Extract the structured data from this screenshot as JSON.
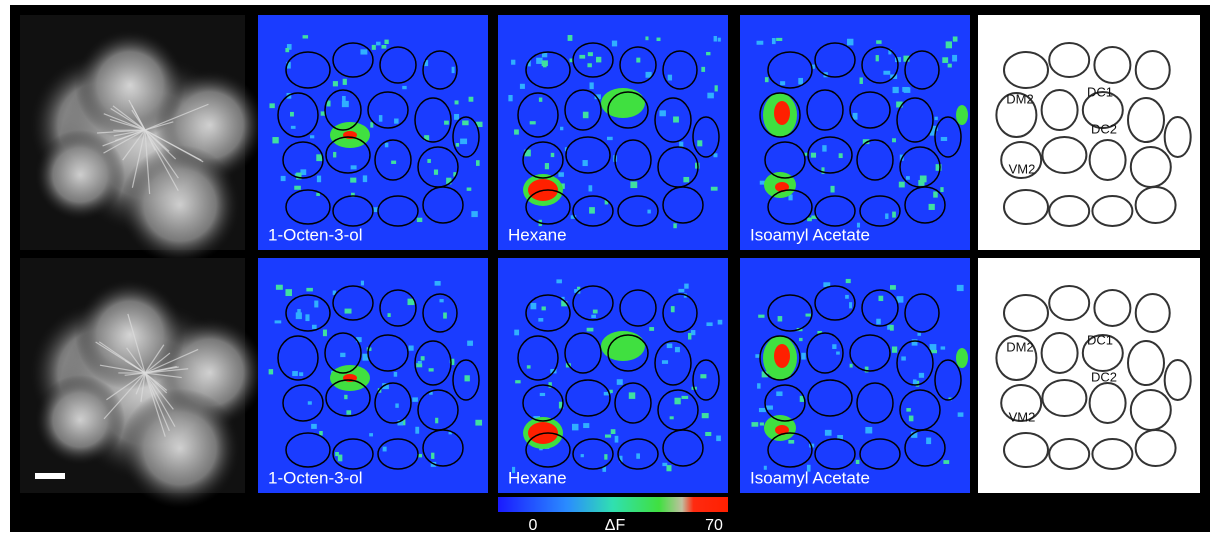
{
  "rows": [
    {
      "panels": [
        {
          "label": "1-Octen-3-ol"
        },
        {
          "label": "Hexane"
        },
        {
          "label": "Isoamyl Acetate"
        }
      ],
      "glomeruli": [
        "DM2",
        "DC1",
        "DC2",
        "VM2"
      ]
    },
    {
      "panels": [
        {
          "label": "1-Octen-3-ol"
        },
        {
          "label": "Hexane"
        },
        {
          "label": "Isoamyl Acetate"
        }
      ],
      "glomeruli": [
        "DM2",
        "DC1",
        "DC2",
        "VM2"
      ]
    }
  ],
  "colorbar": {
    "min": "0",
    "label": "ΔF",
    "max": "70"
  }
}
